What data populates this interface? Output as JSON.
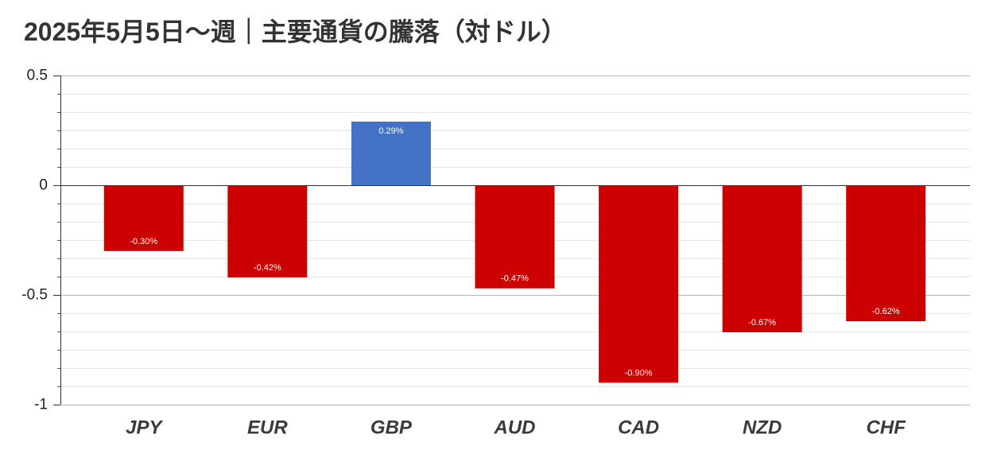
{
  "chart_data": {
    "type": "bar",
    "title": "2025年5月5日～週｜主要通貨の騰落（対ドル）",
    "categories": [
      "JPY",
      "EUR",
      "GBP",
      "AUD",
      "CAD",
      "NZD",
      "CHF"
    ],
    "values": [
      -0.3,
      -0.42,
      0.29,
      -0.47,
      -0.9,
      -0.67,
      -0.62
    ],
    "data_labels": [
      "-0.30%",
      "-0.42%",
      "0.29%",
      "-0.47%",
      "-0.90%",
      "-0.67%",
      "-0.62%"
    ],
    "ylim": [
      -1,
      0.5
    ],
    "yticks": [
      0.5,
      0,
      -0.5,
      -1
    ],
    "grid": true,
    "colors": {
      "positive": "#4472c4",
      "negative": "#cc0000"
    }
  }
}
